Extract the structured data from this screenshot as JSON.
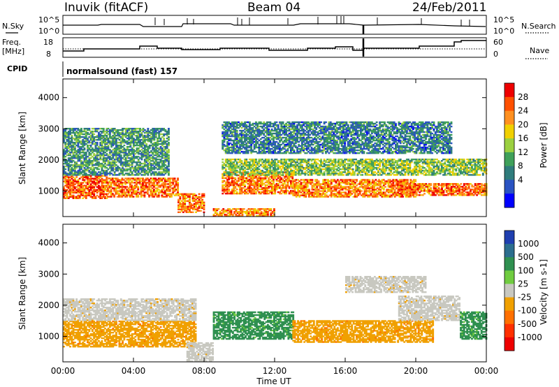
{
  "header": {
    "title": "Inuvik (fitACF)",
    "beam": "Beam 04",
    "date": "24/Feb/2011"
  },
  "status_rows": {
    "nsky_label": "N.Sky",
    "nsky_ticks": [
      "10^5",
      "10^0"
    ],
    "nsearch_label": "N.Search",
    "nsearch_ticks": [
      "10^5",
      "10^0"
    ],
    "freq_label": [
      "Freq.",
      "[MHz]"
    ],
    "freq_ticks": [
      "18",
      "8"
    ],
    "nave_label": "Nave",
    "nave_ticks": [
      "60",
      "0"
    ],
    "cpid_label": "CPID",
    "cpid_value": "normalsound (fast) 157"
  },
  "chart_data": [
    {
      "type": "heatmap",
      "name": "power-panel",
      "xlabel": "",
      "ylabel": "Slant Range [km]",
      "x_ticks": [
        "00:00",
        "04:00",
        "08:00",
        "12:00",
        "16:00",
        "20:00",
        "00:00"
      ],
      "y_ticks": [
        1000,
        2000,
        3000,
        4000
      ],
      "xlim_hours": [
        0,
        24
      ],
      "ylim": [
        180,
        4600
      ],
      "colorbar": {
        "label": "Power [dB]",
        "ticks": [
          "28",
          "24",
          "20",
          "16",
          "12",
          "8",
          "4"
        ],
        "range": [
          0,
          32
        ],
        "colors": [
          "#0000ff",
          "#2a53c2",
          "#2f7c7c",
          "#3fa05a",
          "#9bd040",
          "#f0d000",
          "#ff9020",
          "#ff5000",
          "#ee0000"
        ]
      },
      "echo_bands": [
        {
          "t_start": 0.0,
          "t_end": 2.5,
          "range_low": 750,
          "range_high": 1500,
          "value": 26
        },
        {
          "t_start": 2.5,
          "t_end": 6.5,
          "range_low": 800,
          "range_high": 1400,
          "value": 25
        },
        {
          "t_start": 6.5,
          "t_end": 8.0,
          "range_low": 300,
          "range_high": 900,
          "value": 24
        },
        {
          "t_start": 9.0,
          "t_end": 13.0,
          "range_low": 900,
          "range_high": 1600,
          "value": 24
        },
        {
          "t_start": 8.5,
          "t_end": 12.0,
          "range_low": 180,
          "range_high": 450,
          "value": 24
        },
        {
          "t_start": 13.0,
          "t_end": 20.0,
          "range_low": 800,
          "range_high": 1350,
          "value": 24
        },
        {
          "t_start": 19.0,
          "t_end": 24.0,
          "range_low": 850,
          "range_high": 1250,
          "value": 25
        },
        {
          "t_start": 0.0,
          "t_end": 6.0,
          "range_low": 1500,
          "range_high": 3000,
          "value": 11
        },
        {
          "t_start": 9.0,
          "t_end": 24.0,
          "range_low": 1500,
          "range_high": 2000,
          "value": 15
        },
        {
          "t_start": 9.0,
          "t_end": 22.0,
          "range_low": 2200,
          "range_high": 3200,
          "value": 9
        }
      ]
    },
    {
      "type": "heatmap",
      "name": "velocity-panel",
      "xlabel": "Time UT",
      "ylabel": "Slant Range [km]",
      "x_ticks": [
        "00:00",
        "04:00",
        "08:00",
        "12:00",
        "16:00",
        "20:00",
        "00:00"
      ],
      "y_ticks": [
        1000,
        2000,
        3000,
        4000
      ],
      "xlim_hours": [
        0,
        24
      ],
      "ylim": [
        180,
        4600
      ],
      "colorbar": {
        "label": "Velocity [m s-1]",
        "ticks": [
          "1000",
          "500",
          "100",
          "25",
          "-25",
          "-100",
          "-500",
          "-1000"
        ],
        "colors": [
          "#1f3fb0",
          "#2c6e8e",
          "#2f9050",
          "#70cc40",
          "#c8c8c0",
          "#f0a000",
          "#ff7000",
          "#ff3000",
          "#ee0000"
        ]
      },
      "echo_bands": [
        {
          "t_start": 0.0,
          "t_end": 7.5,
          "range_low": 650,
          "range_high": 1500,
          "value": -100
        },
        {
          "t_start": 0.0,
          "t_end": 7.5,
          "range_low": 1500,
          "range_high": 2200,
          "value": -25
        },
        {
          "t_start": 8.5,
          "t_end": 13.0,
          "range_low": 900,
          "range_high": 1800,
          "value": 100
        },
        {
          "t_start": 13.0,
          "t_end": 21.0,
          "range_low": 800,
          "range_high": 1500,
          "value": -100
        },
        {
          "t_start": 19.0,
          "t_end": 22.5,
          "range_low": 1500,
          "range_high": 2300,
          "value": -25
        },
        {
          "t_start": 22.5,
          "t_end": 24.0,
          "range_low": 900,
          "range_high": 1800,
          "value": 100
        },
        {
          "t_start": 7.0,
          "t_end": 8.5,
          "range_low": 180,
          "range_high": 800,
          "value": -25
        },
        {
          "t_start": 16.0,
          "t_end": 20.5,
          "range_low": 2400,
          "range_high": 2900,
          "value": -25
        }
      ]
    }
  ]
}
